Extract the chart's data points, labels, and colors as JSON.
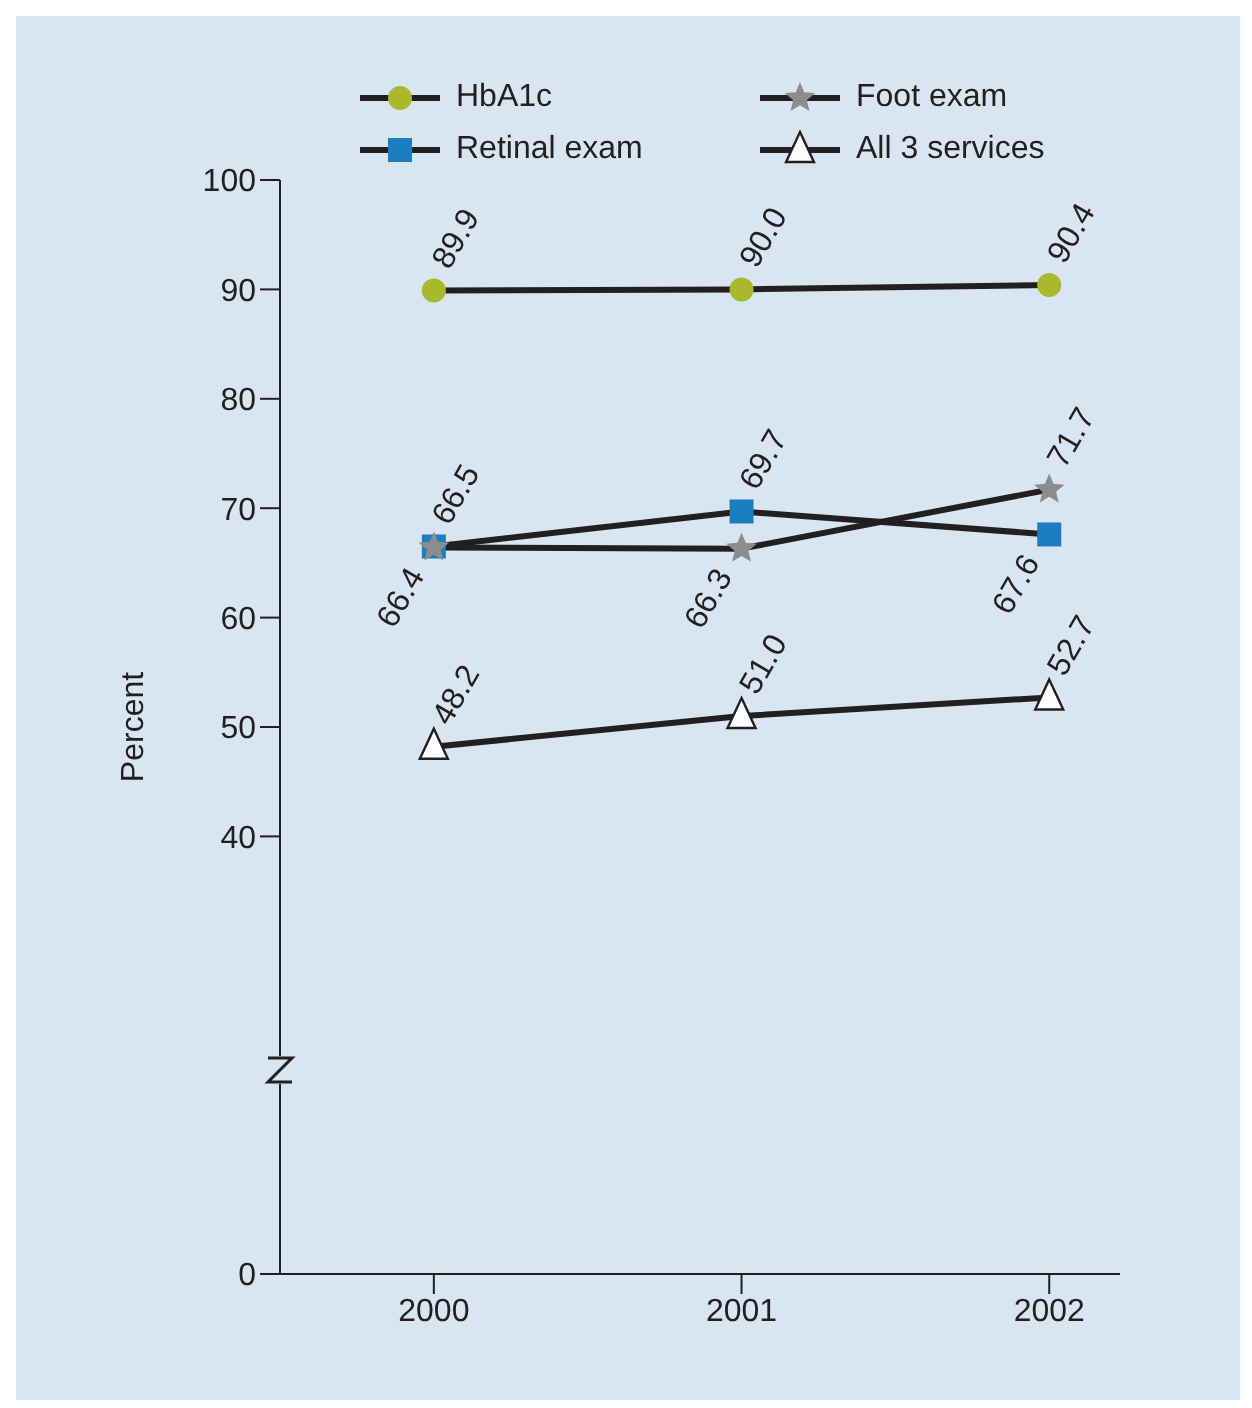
{
  "chart_data": {
    "type": "line",
    "ylabel": "Percent",
    "categories": [
      "2000",
      "2001",
      "2002"
    ],
    "series": [
      {
        "name": "HbA1c",
        "color": "#a9b92a",
        "marker": "circle",
        "values": [
          89.9,
          90.0,
          90.4
        ],
        "value_labels": [
          "89.9",
          "90.0",
          "90.4"
        ]
      },
      {
        "name": "Retinal exam",
        "color": "#1b7dc2",
        "marker": "square",
        "values": [
          66.5,
          69.7,
          67.6
        ],
        "value_labels": [
          "66.5",
          "69.7",
          "67.6"
        ]
      },
      {
        "name": "Foot exam",
        "color": "#8c8c8c",
        "marker": "star",
        "values": [
          66.4,
          66.3,
          71.7
        ],
        "value_labels": [
          "66.4",
          "66.3",
          "71.7"
        ]
      },
      {
        "name": "All 3 services",
        "color": "#ffffff",
        "marker": "triangle",
        "values": [
          48.2,
          51.0,
          52.7
        ],
        "value_labels": [
          "48.2",
          "51.0",
          "52.7"
        ]
      }
    ],
    "ylim": [
      0,
      100
    ],
    "yticks": [
      0,
      40,
      50,
      60,
      70,
      80,
      90,
      100
    ],
    "grid": false,
    "legend": "top",
    "line_style": "solid"
  }
}
